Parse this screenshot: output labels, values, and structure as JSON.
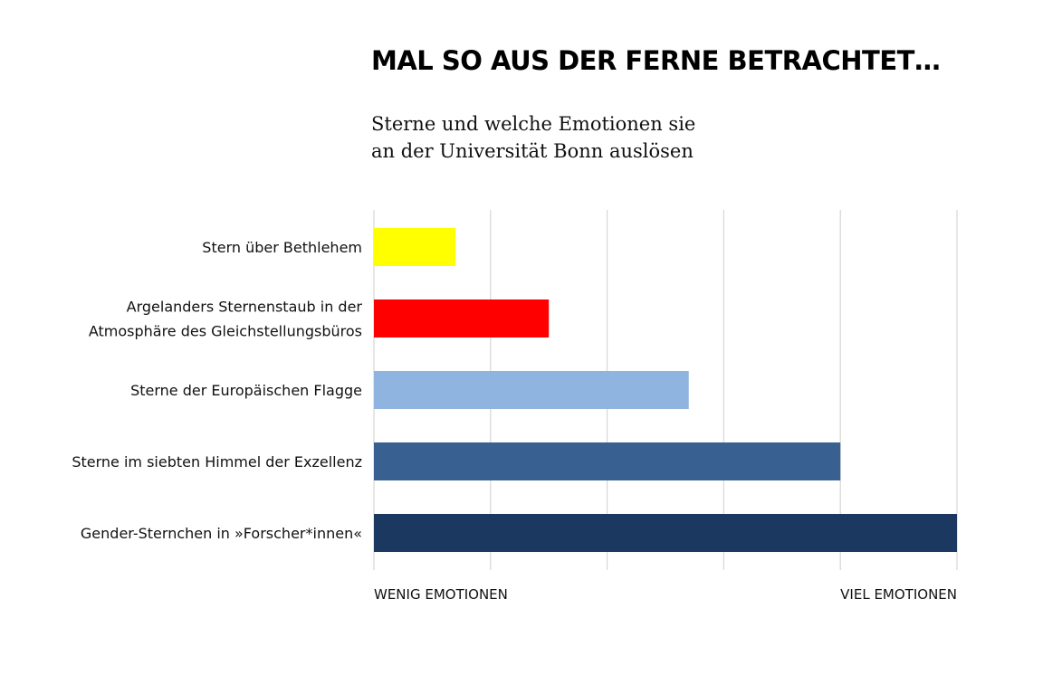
{
  "chart_data": {
    "type": "bar",
    "orientation": "horizontal",
    "title": "MAL SO AUS DER FERNE BETRACHTET…",
    "subtitle": "Sterne und welche Emotionen sie\nan der Universität Bonn auslösen",
    "categories": [
      [
        "Stern über Bethlehem"
      ],
      [
        "Argelanders Sternenstaub in der",
        "Atmosphäre des Gleichstellungsbüros"
      ],
      [
        "Sterne der Europäischen Flagge"
      ],
      [
        "Sterne im siebten Himmel der Exzellenz"
      ],
      [
        "Gender-Sternchen in »Forscher*innen«"
      ]
    ],
    "values": [
      0.7,
      1.5,
      2.7,
      4.0,
      5.0
    ],
    "colors": [
      "#ffff00",
      "#ff0000",
      "#8fb4e0",
      "#386192",
      "#1a3860"
    ],
    "xlim": [
      0,
      5
    ],
    "x_axis_labels": {
      "min": "WENIG EMOTIONEN",
      "max": "VIEL EMOTIONEN"
    },
    "grid": true,
    "grid_color": "#d9d9d9",
    "legend": "none"
  }
}
